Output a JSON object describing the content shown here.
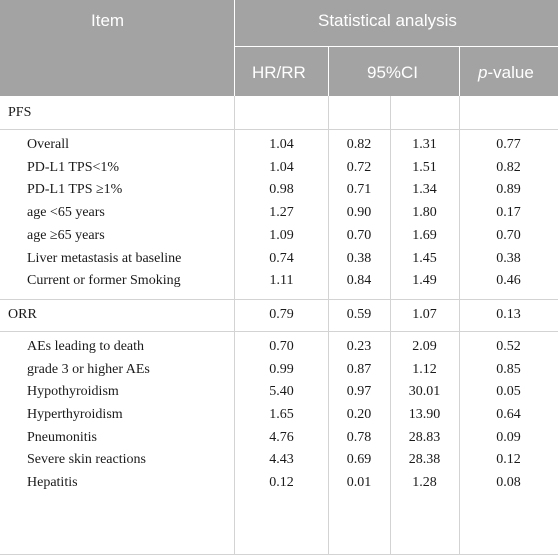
{
  "header": {
    "item": "Item",
    "group": "Statistical analysis",
    "hr_rr": "HR/RR",
    "ci": "95%CI",
    "p_prefix": "p",
    "p_suffix": "-value"
  },
  "sections": [
    {
      "label": "PFS",
      "rows": [
        {
          "item": "Overall",
          "hr": "1.04",
          "ci_low": "0.82",
          "ci_high": "1.31",
          "p": "0.77"
        },
        {
          "item": "PD-L1 TPS<1%",
          "hr": "1.04",
          "ci_low": "0.72",
          "ci_high": "1.51",
          "p": "0.82"
        },
        {
          "item": "PD-L1 TPS ≥1%",
          "hr": "0.98",
          "ci_low": "0.71",
          "ci_high": "1.34",
          "p": "0.89"
        },
        {
          "item": "age <65 years",
          "hr": "1.27",
          "ci_low": "0.90",
          "ci_high": "1.80",
          "p": "0.17"
        },
        {
          "item": "age ≥65 years",
          "hr": "1.09",
          "ci_low": "0.70",
          "ci_high": "1.69",
          "p": "0.70"
        },
        {
          "item": "Liver metastasis at baseline",
          "hr": "0.74",
          "ci_low": "0.38",
          "ci_high": "1.45",
          "p": "0.38"
        },
        {
          "item": "Current or former Smoking",
          "hr": "1.11",
          "ci_low": "0.84",
          "ci_high": "1.49",
          "p": "0.46"
        }
      ]
    },
    {
      "label": "ORR",
      "values": {
        "hr": "0.79",
        "ci_low": "0.59",
        "ci_high": "1.07",
        "p": "0.13"
      },
      "rows": [
        {
          "item": "AEs leading to death",
          "hr": "0.70",
          "ci_low": "0.23",
          "ci_high": "2.09",
          "p": "0.52"
        },
        {
          "item": "grade 3 or higher AEs",
          "hr": "0.99",
          "ci_low": "0.87",
          "ci_high": "1.12",
          "p": "0.85"
        },
        {
          "item": "Hypothyroidism",
          "hr": "5.40",
          "ci_low": "0.97",
          "ci_high": "30.01",
          "p": "0.05"
        },
        {
          "item": "Hyperthyroidism",
          "hr": "1.65",
          "ci_low": "0.20",
          "ci_high": "13.90",
          "p": "0.64"
        },
        {
          "item": "Pneumonitis",
          "hr": "4.76",
          "ci_low": "0.78",
          "ci_high": "28.83",
          "p": "0.09"
        },
        {
          "item": "Severe skin reactions",
          "hr": "4.43",
          "ci_low": "0.69",
          "ci_high": "28.38",
          "p": "0.12"
        },
        {
          "item": "Hepatitis",
          "hr": "0.12",
          "ci_low": "0.01",
          "ci_high": "1.28",
          "p": "0.08"
        }
      ]
    }
  ]
}
